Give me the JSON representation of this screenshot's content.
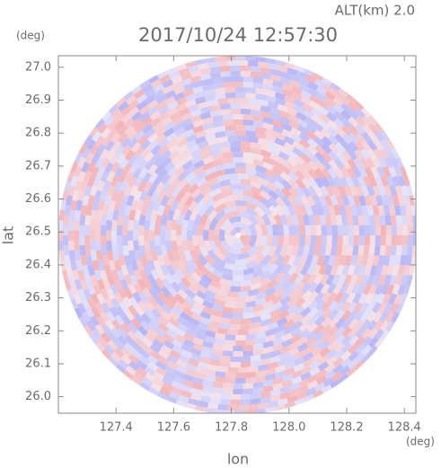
{
  "chart_data": {
    "type": "radar-ppi",
    "title": "2017/10/24 12:57:30",
    "altitude_label": "ALT(km) 2.0",
    "y_unit": "(deg)",
    "x_unit": "(deg)",
    "xlabel": "lon",
    "ylabel": "lat",
    "xlim": [
      127.2,
      128.44
    ],
    "ylim": [
      25.95,
      27.035
    ],
    "xticks": [
      127.4,
      127.6,
      127.8,
      {
        "value": 128.0,
        "label": "128.0"
      },
      128.2,
      128.4
    ],
    "yticks": [
      {
        "value": 26.0,
        "label": "26.0"
      },
      26.1,
      26.2,
      26.3,
      26.4,
      26.5,
      26.6,
      26.7,
      26.8,
      26.9,
      {
        "value": 27.0,
        "label": "27.0"
      }
    ]
  }
}
